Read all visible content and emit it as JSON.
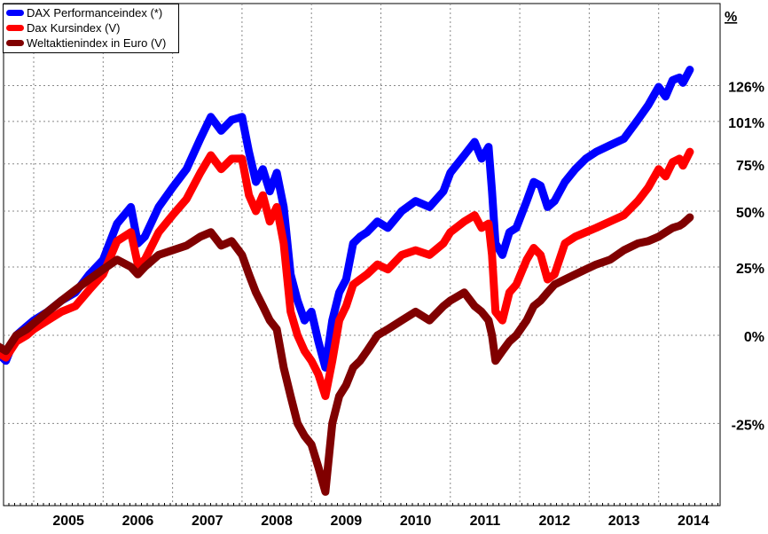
{
  "chart_data": {
    "type": "line",
    "title": "",
    "xlabel": "",
    "ylabel": "%",
    "y_unit": "%",
    "y_scale": "log",
    "y_ticks": [
      -25,
      0,
      25,
      50,
      75,
      101,
      126
    ],
    "y_tick_labels": [
      "-25%",
      "0%",
      "25%",
      "50%",
      "75%",
      "101%",
      "126%"
    ],
    "x_tick_labels": [
      "2005",
      "2006",
      "2007",
      "2008",
      "2009",
      "2010",
      "2011",
      "2012",
      "2013",
      "2014"
    ],
    "grid": true,
    "legend_position": "top-left",
    "series": [
      {
        "name": "DAX Performanceindex (*)",
        "color": "#0000ff",
        "points": [
          [
            2004.3,
            0
          ],
          [
            2004.45,
            -5
          ],
          [
            2004.6,
            -8
          ],
          [
            2004.75,
            0
          ],
          [
            2004.9,
            3
          ],
          [
            2005.0,
            5
          ],
          [
            2005.2,
            8
          ],
          [
            2005.4,
            12
          ],
          [
            2005.6,
            15
          ],
          [
            2005.8,
            22
          ],
          [
            2006.0,
            28
          ],
          [
            2006.2,
            44
          ],
          [
            2006.4,
            52
          ],
          [
            2006.5,
            35
          ],
          [
            2006.6,
            38
          ],
          [
            2006.8,
            52
          ],
          [
            2007.0,
            62
          ],
          [
            2007.2,
            72
          ],
          [
            2007.4,
            90
          ],
          [
            2007.55,
            104
          ],
          [
            2007.7,
            95
          ],
          [
            2007.85,
            102
          ],
          [
            2008.0,
            104
          ],
          [
            2008.1,
            82
          ],
          [
            2008.2,
            65
          ],
          [
            2008.3,
            72
          ],
          [
            2008.4,
            60
          ],
          [
            2008.5,
            70
          ],
          [
            2008.6,
            52
          ],
          [
            2008.7,
            22
          ],
          [
            2008.8,
            12
          ],
          [
            2008.9,
            5
          ],
          [
            2009.0,
            8
          ],
          [
            2009.1,
            -2
          ],
          [
            2009.2,
            -10
          ],
          [
            2009.3,
            5
          ],
          [
            2009.4,
            15
          ],
          [
            2009.5,
            20
          ],
          [
            2009.6,
            35
          ],
          [
            2009.7,
            38
          ],
          [
            2009.8,
            40
          ],
          [
            2009.95,
            45
          ],
          [
            2010.1,
            42
          ],
          [
            2010.3,
            50
          ],
          [
            2010.5,
            55
          ],
          [
            2010.7,
            52
          ],
          [
            2010.9,
            60
          ],
          [
            2011.0,
            70
          ],
          [
            2011.2,
            80
          ],
          [
            2011.35,
            88
          ],
          [
            2011.45,
            78
          ],
          [
            2011.55,
            85
          ],
          [
            2011.6,
            60
          ],
          [
            2011.65,
            35
          ],
          [
            2011.75,
            30
          ],
          [
            2011.85,
            40
          ],
          [
            2011.95,
            42
          ],
          [
            2012.1,
            55
          ],
          [
            2012.2,
            65
          ],
          [
            2012.3,
            63
          ],
          [
            2012.4,
            52
          ],
          [
            2012.5,
            55
          ],
          [
            2012.65,
            65
          ],
          [
            2012.8,
            72
          ],
          [
            2012.95,
            78
          ],
          [
            2013.1,
            82
          ],
          [
            2013.3,
            86
          ],
          [
            2013.5,
            90
          ],
          [
            2013.7,
            102
          ],
          [
            2013.85,
            112
          ],
          [
            2014.0,
            125
          ],
          [
            2014.1,
            118
          ],
          [
            2014.2,
            130
          ],
          [
            2014.3,
            132
          ],
          [
            2014.35,
            128
          ],
          [
            2014.45,
            138
          ]
        ]
      },
      {
        "name": "Dax Kursindex (V)",
        "color": "#ff0000",
        "points": [
          [
            2004.3,
            0
          ],
          [
            2004.45,
            -5
          ],
          [
            2004.6,
            -7
          ],
          [
            2004.75,
            -2
          ],
          [
            2004.9,
            0
          ],
          [
            2005.0,
            2
          ],
          [
            2005.2,
            5
          ],
          [
            2005.4,
            8
          ],
          [
            2005.6,
            10
          ],
          [
            2005.8,
            16
          ],
          [
            2006.0,
            22
          ],
          [
            2006.2,
            36
          ],
          [
            2006.4,
            40
          ],
          [
            2006.5,
            26
          ],
          [
            2006.6,
            28
          ],
          [
            2006.8,
            40
          ],
          [
            2007.0,
            48
          ],
          [
            2007.2,
            56
          ],
          [
            2007.4,
            70
          ],
          [
            2007.55,
            80
          ],
          [
            2007.7,
            72
          ],
          [
            2007.85,
            78
          ],
          [
            2008.0,
            78
          ],
          [
            2008.1,
            58
          ],
          [
            2008.2,
            50
          ],
          [
            2008.3,
            58
          ],
          [
            2008.4,
            45
          ],
          [
            2008.5,
            52
          ],
          [
            2008.6,
            35
          ],
          [
            2008.7,
            8
          ],
          [
            2008.8,
            0
          ],
          [
            2008.9,
            -5
          ],
          [
            2009.0,
            -8
          ],
          [
            2009.1,
            -12
          ],
          [
            2009.2,
            -18
          ],
          [
            2009.3,
            -8
          ],
          [
            2009.4,
            5
          ],
          [
            2009.5,
            10
          ],
          [
            2009.6,
            18
          ],
          [
            2009.7,
            20
          ],
          [
            2009.8,
            22
          ],
          [
            2009.95,
            26
          ],
          [
            2010.1,
            24
          ],
          [
            2010.3,
            30
          ],
          [
            2010.5,
            32
          ],
          [
            2010.7,
            30
          ],
          [
            2010.9,
            35
          ],
          [
            2011.0,
            40
          ],
          [
            2011.2,
            45
          ],
          [
            2011.35,
            48
          ],
          [
            2011.45,
            42
          ],
          [
            2011.55,
            44
          ],
          [
            2011.6,
            30
          ],
          [
            2011.65,
            8
          ],
          [
            2011.75,
            5
          ],
          [
            2011.85,
            15
          ],
          [
            2011.95,
            18
          ],
          [
            2012.1,
            28
          ],
          [
            2012.2,
            33
          ],
          [
            2012.3,
            30
          ],
          [
            2012.4,
            20
          ],
          [
            2012.5,
            22
          ],
          [
            2012.65,
            35
          ],
          [
            2012.8,
            38
          ],
          [
            2012.95,
            40
          ],
          [
            2013.1,
            42
          ],
          [
            2013.3,
            45
          ],
          [
            2013.5,
            48
          ],
          [
            2013.7,
            55
          ],
          [
            2013.85,
            62
          ],
          [
            2014.0,
            72
          ],
          [
            2014.1,
            68
          ],
          [
            2014.2,
            76
          ],
          [
            2014.3,
            78
          ],
          [
            2014.35,
            74
          ],
          [
            2014.45,
            82
          ]
        ]
      },
      {
        "name": "Weltaktienindex in Euro (V)",
        "color": "#800000",
        "points": [
          [
            2004.3,
            0
          ],
          [
            2004.45,
            -3
          ],
          [
            2004.6,
            -5
          ],
          [
            2004.75,
            0
          ],
          [
            2004.9,
            2
          ],
          [
            2005.0,
            4
          ],
          [
            2005.2,
            8
          ],
          [
            2005.4,
            12
          ],
          [
            2005.6,
            16
          ],
          [
            2005.8,
            20
          ],
          [
            2006.0,
            24
          ],
          [
            2006.2,
            28
          ],
          [
            2006.4,
            25
          ],
          [
            2006.5,
            22
          ],
          [
            2006.6,
            25
          ],
          [
            2006.8,
            30
          ],
          [
            2007.0,
            32
          ],
          [
            2007.2,
            34
          ],
          [
            2007.4,
            38
          ],
          [
            2007.55,
            40
          ],
          [
            2007.7,
            34
          ],
          [
            2007.85,
            36
          ],
          [
            2008.0,
            30
          ],
          [
            2008.1,
            22
          ],
          [
            2008.2,
            15
          ],
          [
            2008.3,
            10
          ],
          [
            2008.4,
            5
          ],
          [
            2008.5,
            2
          ],
          [
            2008.6,
            -10
          ],
          [
            2008.7,
            -18
          ],
          [
            2008.8,
            -25
          ],
          [
            2008.9,
            -28
          ],
          [
            2009.0,
            -30
          ],
          [
            2009.1,
            -35
          ],
          [
            2009.2,
            -40
          ],
          [
            2009.3,
            -25
          ],
          [
            2009.4,
            -18
          ],
          [
            2009.5,
            -15
          ],
          [
            2009.6,
            -10
          ],
          [
            2009.7,
            -8
          ],
          [
            2009.8,
            -5
          ],
          [
            2009.95,
            0
          ],
          [
            2010.1,
            2
          ],
          [
            2010.3,
            5
          ],
          [
            2010.5,
            8
          ],
          [
            2010.7,
            5
          ],
          [
            2010.9,
            10
          ],
          [
            2011.0,
            12
          ],
          [
            2011.2,
            15
          ],
          [
            2011.35,
            10
          ],
          [
            2011.45,
            8
          ],
          [
            2011.55,
            5
          ],
          [
            2011.6,
            0
          ],
          [
            2011.65,
            -8
          ],
          [
            2011.75,
            -5
          ],
          [
            2011.85,
            -2
          ],
          [
            2011.95,
            0
          ],
          [
            2012.1,
            5
          ],
          [
            2012.2,
            10
          ],
          [
            2012.3,
            12
          ],
          [
            2012.4,
            15
          ],
          [
            2012.5,
            18
          ],
          [
            2012.65,
            20
          ],
          [
            2012.8,
            22
          ],
          [
            2012.95,
            24
          ],
          [
            2013.1,
            26
          ],
          [
            2013.3,
            28
          ],
          [
            2013.5,
            32
          ],
          [
            2013.7,
            35
          ],
          [
            2013.85,
            36
          ],
          [
            2014.0,
            38
          ],
          [
            2014.1,
            40
          ],
          [
            2014.2,
            42
          ],
          [
            2014.3,
            43
          ],
          [
            2014.35,
            44
          ],
          [
            2014.45,
            47
          ]
        ]
      }
    ]
  }
}
